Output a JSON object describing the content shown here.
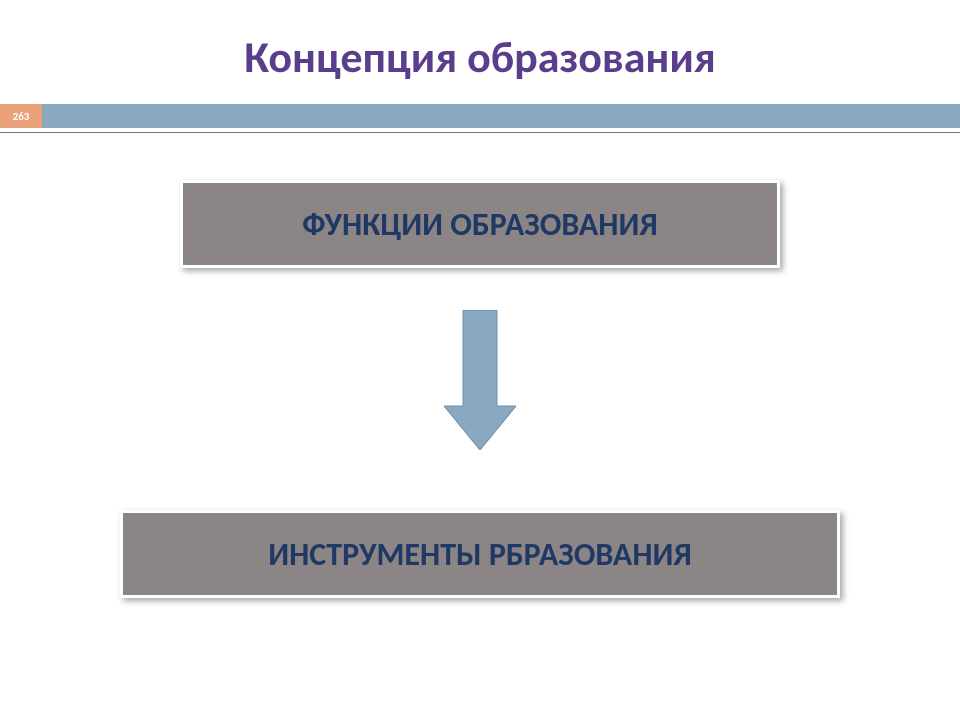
{
  "title": {
    "text": "Концепция образования",
    "color": "#5a3e8c",
    "fontsize": 44
  },
  "page_badge": {
    "number": "263",
    "background": "#e9a178",
    "text_color": "#ffffff",
    "fontsize": 11,
    "width": 42
  },
  "header_bar": {
    "color": "#8aa9c1",
    "underline_color": "#7a7a7a"
  },
  "diagram": {
    "type": "flowchart",
    "nodes": [
      {
        "id": "top",
        "label": "ФУНКЦИИ ОБРАЗОВАНИЯ",
        "fill": "#8b8585",
        "border": "#ffffff",
        "border_width": 3,
        "text_color": "#203864",
        "fontsize": 32
      },
      {
        "id": "bottom",
        "label": "ИНСТРУМЕНТЫ РБРАЗОВАНИЯ",
        "fill": "#8b8585",
        "border": "#ffffff",
        "border_width": 3,
        "text_color": "#203864",
        "fontsize": 32
      }
    ],
    "edges": [
      {
        "from": "top",
        "to": "bottom",
        "arrow": {
          "fill": "#8aa9c1",
          "stroke": "#6f8fa9",
          "stroke_width": 1,
          "shaft_width": 34,
          "head_width": 72,
          "head_height": 44,
          "total_height": 140
        }
      }
    ]
  },
  "background_color": "#ffffff"
}
